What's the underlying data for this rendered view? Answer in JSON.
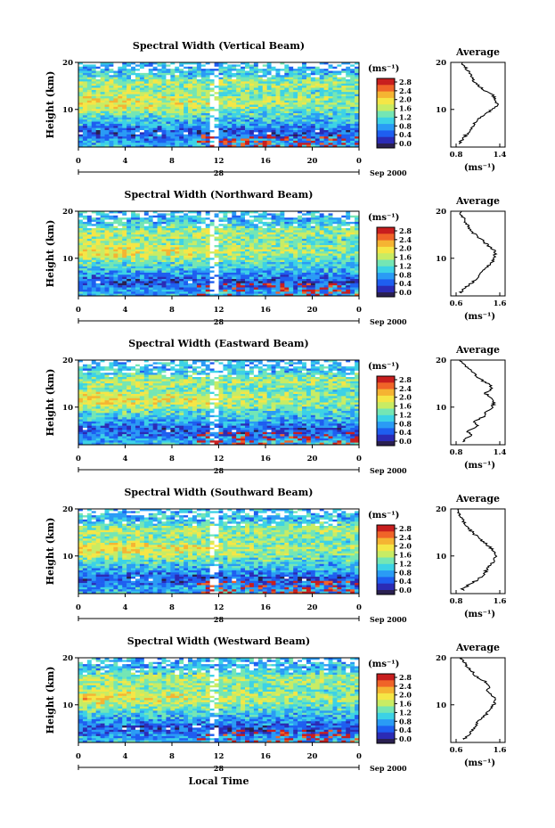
{
  "figure": {
    "month_label": "Sep 2000",
    "date_label": "28",
    "xlabel": "Local Time",
    "ylabel": "Height (km)",
    "units": "(ms⁻¹)",
    "x_ticks": [
      "0",
      "4",
      "8",
      "12",
      "16",
      "20",
      "0"
    ],
    "y_ticks": [
      "20",
      "10"
    ],
    "colorbar_ticks": [
      "2.8",
      "2.4",
      "2.0",
      "1.6",
      "1.2",
      "0.8",
      "0.4",
      "0.0"
    ],
    "colors": {
      "colormap": [
        "#2b2bb5",
        "#1e5ef0",
        "#2a9bf5",
        "#3cd2e6",
        "#74e6b4",
        "#c8ec64",
        "#f5e646",
        "#f5b432",
        "#f06428",
        "#c81e1e"
      ],
      "missing": "#ffffff",
      "below_min": "#2a2050"
    }
  },
  "chart_data": [
    {
      "type": "heatmap",
      "title": "Spectral Width (Vertical Beam)",
      "xlabel": "Local Time",
      "ylabel": "Height (km)",
      "x_range": [
        0,
        24
      ],
      "y_range": [
        2,
        20
      ],
      "z_range": [
        0.0,
        3.0
      ],
      "z_unit": "ms⁻¹",
      "average_profile": {
        "title": "Average",
        "xlim": [
          0.8,
          1.4
        ],
        "x_ticks": [
          "0.8",
          "1.4"
        ],
        "y_ticks": [
          "20",
          "10"
        ],
        "unit": "(ms⁻¹)",
        "height_km": [
          3,
          4,
          5,
          6,
          7,
          8,
          9,
          10,
          11,
          12,
          13,
          14,
          15,
          16,
          17,
          18,
          19,
          20
        ],
        "width_ms": [
          0.86,
          0.9,
          0.96,
          1.0,
          1.05,
          1.12,
          1.2,
          1.3,
          1.36,
          1.35,
          1.3,
          1.2,
          1.12,
          1.04,
          1.0,
          0.98,
          0.92,
          0.88
        ]
      }
    },
    {
      "type": "heatmap",
      "title": "Spectral Width (Northward Beam)",
      "xlabel": "Local Time",
      "ylabel": "Height (km)",
      "x_range": [
        0,
        24
      ],
      "y_range": [
        2,
        20
      ],
      "z_range": [
        0.0,
        3.0
      ],
      "z_unit": "ms⁻¹",
      "average_profile": {
        "title": "Average",
        "xlim": [
          0.6,
          1.6
        ],
        "x_ticks": [
          "0.6",
          "1.6"
        ],
        "y_ticks": [
          "20",
          "10"
        ],
        "unit": "(ms⁻¹)",
        "height_km": [
          3,
          4,
          5,
          6,
          7,
          8,
          9,
          10,
          11,
          12,
          13,
          14,
          15,
          16,
          17,
          18,
          19,
          20
        ],
        "width_ms": [
          0.72,
          0.85,
          0.98,
          1.1,
          1.18,
          1.3,
          1.42,
          1.48,
          1.5,
          1.44,
          1.3,
          1.18,
          1.05,
          0.92,
          0.86,
          0.8,
          0.74,
          0.7
        ]
      }
    },
    {
      "type": "heatmap",
      "title": "Spectral Width (Eastward Beam)",
      "xlabel": "Local Time",
      "ylabel": "Height (km)",
      "x_range": [
        0,
        24
      ],
      "y_range": [
        2,
        20
      ],
      "z_range": [
        0.0,
        3.0
      ],
      "z_unit": "ms⁻¹",
      "average_profile": {
        "title": "Average",
        "xlim": [
          0.8,
          1.4
        ],
        "x_ticks": [
          "0.8",
          "1.4"
        ],
        "y_ticks": [
          "20",
          "10"
        ],
        "unit": "(ms⁻¹)",
        "height_km": [
          3,
          4,
          5,
          6,
          7,
          8,
          9,
          10,
          11,
          12,
          13,
          14,
          15,
          16,
          17,
          18,
          19,
          20
        ],
        "width_ms": [
          0.9,
          1.02,
          0.95,
          1.1,
          1.05,
          1.18,
          1.22,
          1.3,
          1.32,
          1.26,
          1.2,
          1.3,
          1.24,
          1.12,
          1.05,
          0.98,
          0.92,
          0.86
        ]
      }
    },
    {
      "type": "heatmap",
      "title": "Spectral Width (Southward Beam)",
      "xlabel": "Local Time",
      "ylabel": "Height (km)",
      "x_range": [
        0,
        24
      ],
      "y_range": [
        2,
        20
      ],
      "z_range": [
        0.0,
        3.0
      ],
      "z_unit": "ms⁻¹",
      "average_profile": {
        "title": "Average",
        "xlim": [
          0.8,
          1.6
        ],
        "x_ticks": [
          "0.8",
          "1.6"
        ],
        "y_ticks": [
          "20",
          "10"
        ],
        "unit": "(ms⁻¹)",
        "height_km": [
          3,
          4,
          5,
          6,
          7,
          8,
          9,
          10,
          11,
          12,
          13,
          14,
          15,
          16,
          17,
          18,
          19,
          20
        ],
        "width_ms": [
          0.92,
          1.05,
          1.2,
          1.3,
          1.36,
          1.42,
          1.5,
          1.52,
          1.5,
          1.4,
          1.3,
          1.2,
          1.1,
          1.02,
          0.96,
          0.9,
          0.86,
          0.84
        ]
      }
    },
    {
      "type": "heatmap",
      "title": "Spectral Width (Westward Beam)",
      "xlabel": "Local Time",
      "ylabel": "Height (km)",
      "x_range": [
        0,
        24
      ],
      "y_range": [
        2,
        20
      ],
      "z_range": [
        0.0,
        3.0
      ],
      "z_unit": "ms⁻¹",
      "average_profile": {
        "title": "Average",
        "xlim": [
          0.6,
          1.6
        ],
        "x_ticks": [
          "0.6",
          "1.6"
        ],
        "y_ticks": [
          "20",
          "10"
        ],
        "unit": "(ms⁻¹)",
        "height_km": [
          3,
          4,
          5,
          6,
          7,
          8,
          9,
          10,
          11,
          12,
          13,
          14,
          15,
          16,
          17,
          18,
          19,
          20
        ],
        "width_ms": [
          0.8,
          0.92,
          1.0,
          1.08,
          1.16,
          1.28,
          1.4,
          1.46,
          1.48,
          1.44,
          1.3,
          1.38,
          1.25,
          1.08,
          0.96,
          0.86,
          0.78,
          0.72
        ]
      }
    }
  ]
}
